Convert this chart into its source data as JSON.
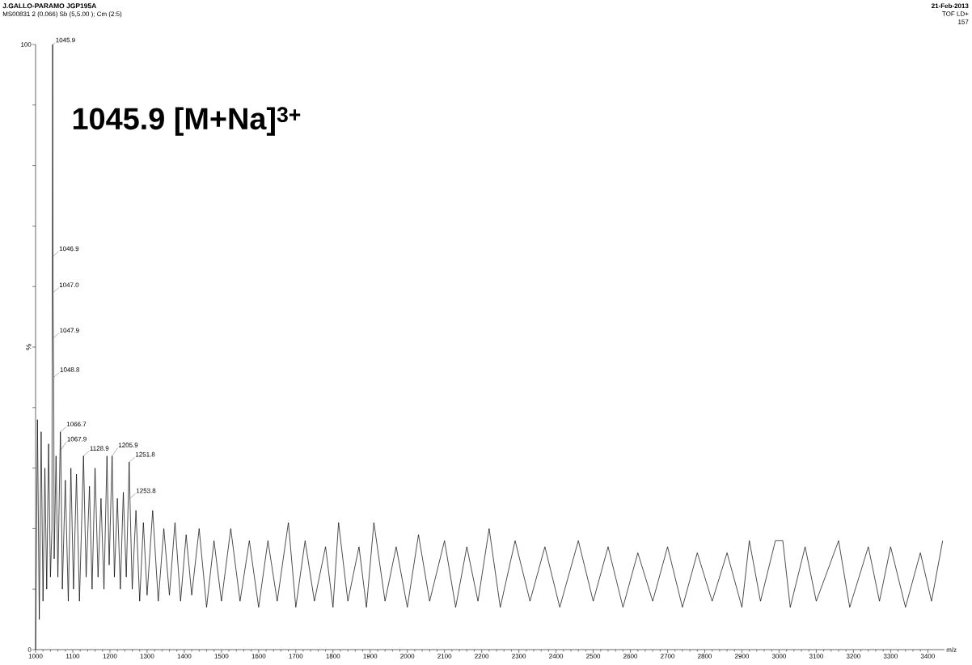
{
  "chart_data": {
    "type": "line",
    "title": "J.GALLO-PARAMO JGP195A",
    "subtitle": "MS00831 2 (0.066) Sb (5,5.00 ); Cm (2:5)",
    "xlabel": "m/z",
    "ylabel": "%",
    "line_style": "solid",
    "marker": "none",
    "xlim": [
      1000,
      3445
    ],
    "ylim": [
      0,
      100
    ],
    "xticks": [
      1000,
      1100,
      1200,
      1300,
      1400,
      1500,
      1600,
      1700,
      1800,
      1900,
      2000,
      2100,
      2200,
      2300,
      2400,
      2500,
      2600,
      2700,
      2800,
      2900,
      3000,
      3100,
      3200,
      3300,
      3400
    ],
    "yticks": [
      0,
      {
        "value": 10,
        "label": null
      },
      {
        "value": 20,
        "label": null
      },
      {
        "value": 30,
        "label": null
      },
      {
        "value": 40,
        "label": null
      },
      {
        "value": 50,
        "label": null
      },
      {
        "value": 60,
        "label": null
      },
      {
        "value": 70,
        "label": null
      },
      {
        "value": 80,
        "label": null
      },
      {
        "value": 90,
        "label": null
      },
      100
    ],
    "annotations": [
      "1045.9   [M+Na]$^{3+}$",
      "21-Feb-2013",
      "TOF LD+",
      "157",
      {
        "text": "1045.9",
        "x": 1045.9,
        "y": 100
      },
      {
        "text": "1046.9",
        "x": 1046.9,
        "y": 65
      },
      {
        "text": "1047.0",
        "x": 1047.0,
        "y": 59
      },
      {
        "text": "1047.9",
        "x": 1047.9,
        "y": 51.5
      },
      {
        "text": "1048.8",
        "x": 1048.8,
        "y": 45
      },
      {
        "text": "1066.7",
        "x": 1066.7,
        "y": 36
      },
      {
        "text": "1067.9",
        "x": 1067.9,
        "y": 33
      },
      {
        "text": "1128.9",
        "x": 1128.9,
        "y": 32
      },
      {
        "text": "1205.9",
        "x": 1205.9,
        "y": 32
      },
      {
        "text": "1251.8",
        "x": 1251.8,
        "y": 31
      },
      {
        "text": "1253.8",
        "x": 1253.8,
        "y": 25
      }
    ],
    "series": [
      {
        "color": "#000000",
        "x": [
          1000,
          1005,
          1010,
          1015,
          1020,
          1025,
          1030,
          1035,
          1040,
          1044,
          1045.9,
          1046.9,
          1047.0,
          1047.9,
          1048.8,
          1050,
          1055,
          1060,
          1066.7,
          1067.9,
          1072,
          1080,
          1088,
          1095,
          1102,
          1110,
          1118,
          1128.9,
          1136,
          1145,
          1152,
          1160,
          1168,
          1176,
          1184,
          1192,
          1198,
          1205.9,
          1212,
          1220,
          1228,
          1236,
          1244,
          1251.8,
          1253.8,
          1260,
          1270,
          1280,
          1290,
          1300,
          1315,
          1330,
          1345,
          1360,
          1375,
          1390,
          1405,
          1420,
          1440,
          1460,
          1480,
          1500,
          1525,
          1550,
          1575,
          1600,
          1625,
          1650,
          1680,
          1700,
          1725,
          1750,
          1780,
          1800,
          1815,
          1840,
          1870,
          1890,
          1910,
          1940,
          1970,
          2000,
          2030,
          2060,
          2100,
          2130,
          2160,
          2190,
          2220,
          2250,
          2290,
          2330,
          2370,
          2410,
          2460,
          2500,
          2540,
          2580,
          2620,
          2660,
          2700,
          2740,
          2780,
          2820,
          2860,
          2900,
          2920,
          2950,
          2990,
          3010,
          3030,
          3070,
          3100,
          3160,
          3190,
          3240,
          3270,
          3300,
          3340,
          3380,
          3410,
          3440
        ],
        "values": [
          0,
          38,
          5,
          36,
          8,
          30,
          10,
          34,
          12,
          20,
          100,
          65,
          59,
          51.5,
          45,
          15,
          32,
          12,
          36,
          33,
          10,
          28,
          8,
          30,
          10,
          29,
          8,
          32,
          12,
          27,
          10,
          30,
          12,
          25,
          10,
          32,
          14,
          32,
          12,
          25,
          10,
          26,
          12,
          31,
          25,
          10,
          23,
          8,
          21,
          9,
          23,
          8,
          20,
          9,
          21,
          8,
          19,
          9,
          20,
          7,
          18,
          8,
          20,
          8,
          18,
          7,
          18,
          8,
          21,
          7,
          18,
          8,
          17,
          7,
          21,
          8,
          17,
          7,
          21,
          8,
          17,
          7,
          19,
          8,
          18,
          7,
          17,
          8,
          20,
          7,
          18,
          8,
          17,
          7,
          18,
          8,
          17,
          7,
          16,
          8,
          17,
          7,
          16,
          8,
          16,
          7,
          18,
          8,
          18,
          18,
          7,
          17,
          8,
          18,
          7,
          17,
          8,
          17,
          7,
          16,
          8,
          18
        ]
      }
    ]
  }
}
